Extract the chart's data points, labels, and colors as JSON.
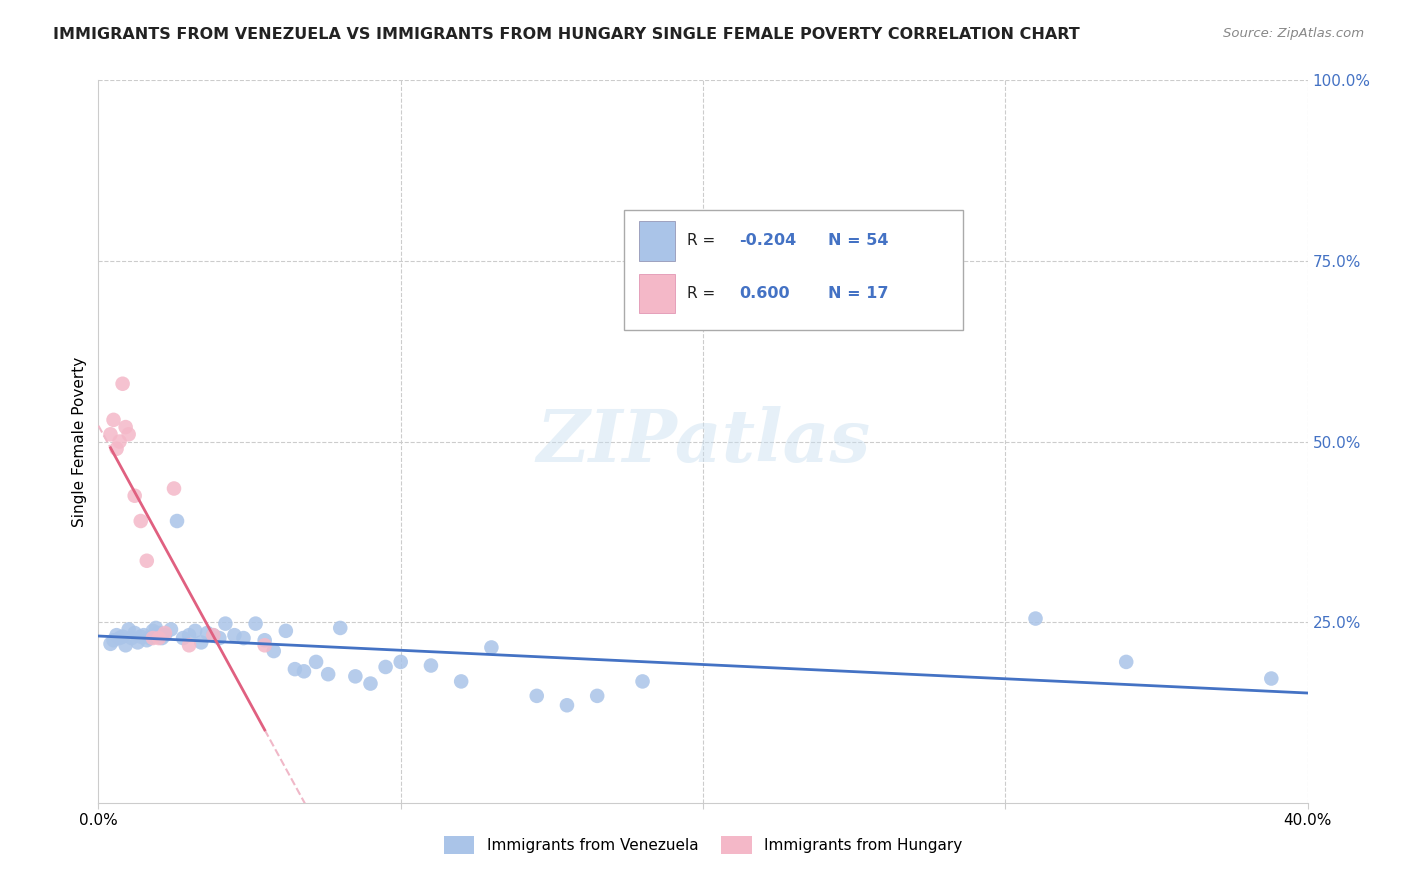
{
  "title": "IMMIGRANTS FROM VENEZUELA VS IMMIGRANTS FROM HUNGARY SINGLE FEMALE POVERTY CORRELATION CHART",
  "source": "Source: ZipAtlas.com",
  "ylabel": "Single Female Poverty",
  "xlim": [
    0.0,
    0.4
  ],
  "ylim": [
    0.0,
    1.0
  ],
  "venezuela_R": -0.204,
  "venezuela_N": 54,
  "hungary_R": 0.6,
  "hungary_N": 17,
  "background_color": "#ffffff",
  "grid_color": "#cccccc",
  "venezuela_color": "#aac4e8",
  "hungary_color": "#f4b8c8",
  "venezuela_line_color": "#4472c4",
  "hungary_line_color": "#e06080",
  "hungary_dash_color": "#f0b8c8",
  "venezuela_x": [
    0.004,
    0.005,
    0.006,
    0.007,
    0.008,
    0.009,
    0.01,
    0.011,
    0.012,
    0.013,
    0.014,
    0.015,
    0.016,
    0.017,
    0.018,
    0.019,
    0.02,
    0.021,
    0.022,
    0.024,
    0.026,
    0.028,
    0.03,
    0.032,
    0.034,
    0.036,
    0.038,
    0.04,
    0.042,
    0.045,
    0.048,
    0.052,
    0.055,
    0.058,
    0.062,
    0.065,
    0.068,
    0.072,
    0.076,
    0.08,
    0.085,
    0.09,
    0.095,
    0.1,
    0.11,
    0.12,
    0.13,
    0.145,
    0.155,
    0.165,
    0.18,
    0.31,
    0.34,
    0.388
  ],
  "venezuela_y": [
    0.22,
    0.225,
    0.232,
    0.228,
    0.23,
    0.218,
    0.24,
    0.228,
    0.235,
    0.222,
    0.23,
    0.232,
    0.225,
    0.228,
    0.238,
    0.242,
    0.235,
    0.228,
    0.232,
    0.24,
    0.39,
    0.228,
    0.232,
    0.238,
    0.222,
    0.235,
    0.232,
    0.228,
    0.248,
    0.232,
    0.228,
    0.248,
    0.225,
    0.21,
    0.238,
    0.185,
    0.182,
    0.195,
    0.178,
    0.242,
    0.175,
    0.165,
    0.188,
    0.195,
    0.19,
    0.168,
    0.215,
    0.148,
    0.135,
    0.148,
    0.168,
    0.255,
    0.195,
    0.172
  ],
  "hungary_x": [
    0.004,
    0.005,
    0.006,
    0.007,
    0.008,
    0.009,
    0.01,
    0.012,
    0.014,
    0.016,
    0.018,
    0.02,
    0.022,
    0.025,
    0.03,
    0.038,
    0.055
  ],
  "hungary_y": [
    0.51,
    0.53,
    0.49,
    0.5,
    0.58,
    0.52,
    0.51,
    0.425,
    0.39,
    0.335,
    0.228,
    0.228,
    0.235,
    0.435,
    0.218,
    0.232,
    0.218
  ]
}
